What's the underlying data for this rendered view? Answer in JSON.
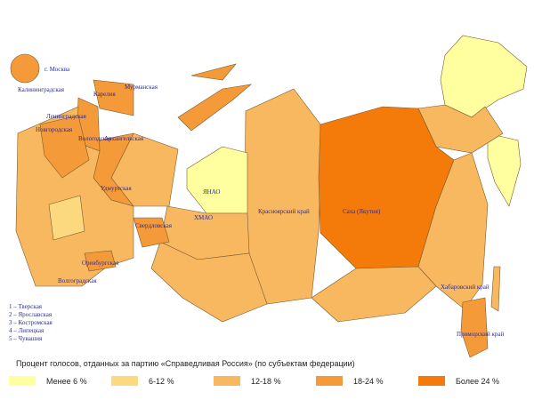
{
  "map": {
    "moscow": "г. Москва",
    "regions": [
      "Калининградская",
      "Карелия",
      "Мурманская",
      "Ленинградская",
      "Новгородская",
      "Вологодская",
      "Архангельская",
      "Удмуртская",
      "Свердловская",
      "Оренбургская",
      "Волгоградская",
      "ЯНАО",
      "ХМАО",
      "Красноярский край",
      "Саха (Якутия)",
      "Хабаровский край",
      "Приморский край"
    ],
    "numbered_list": [
      "1 – Тверская",
      "2 – Ярославская",
      "3 – Костромская",
      "4 – Липецкая",
      "5 – Чувашия"
    ]
  },
  "legend": {
    "title": "Процент голосов, отданных за партию «Справедливая Россия» (по субъектам федерации)",
    "items": [
      {
        "label": "Менее 6 %",
        "color": "#ffffa0"
      },
      {
        "label": "6-12 %",
        "color": "#fcd87e"
      },
      {
        "label": "12-18 %",
        "color": "#f8b860"
      },
      {
        "label": "18-24 %",
        "color": "#f59a38"
      },
      {
        "label": "Более 24 %",
        "color": "#f47a0a"
      }
    ]
  }
}
